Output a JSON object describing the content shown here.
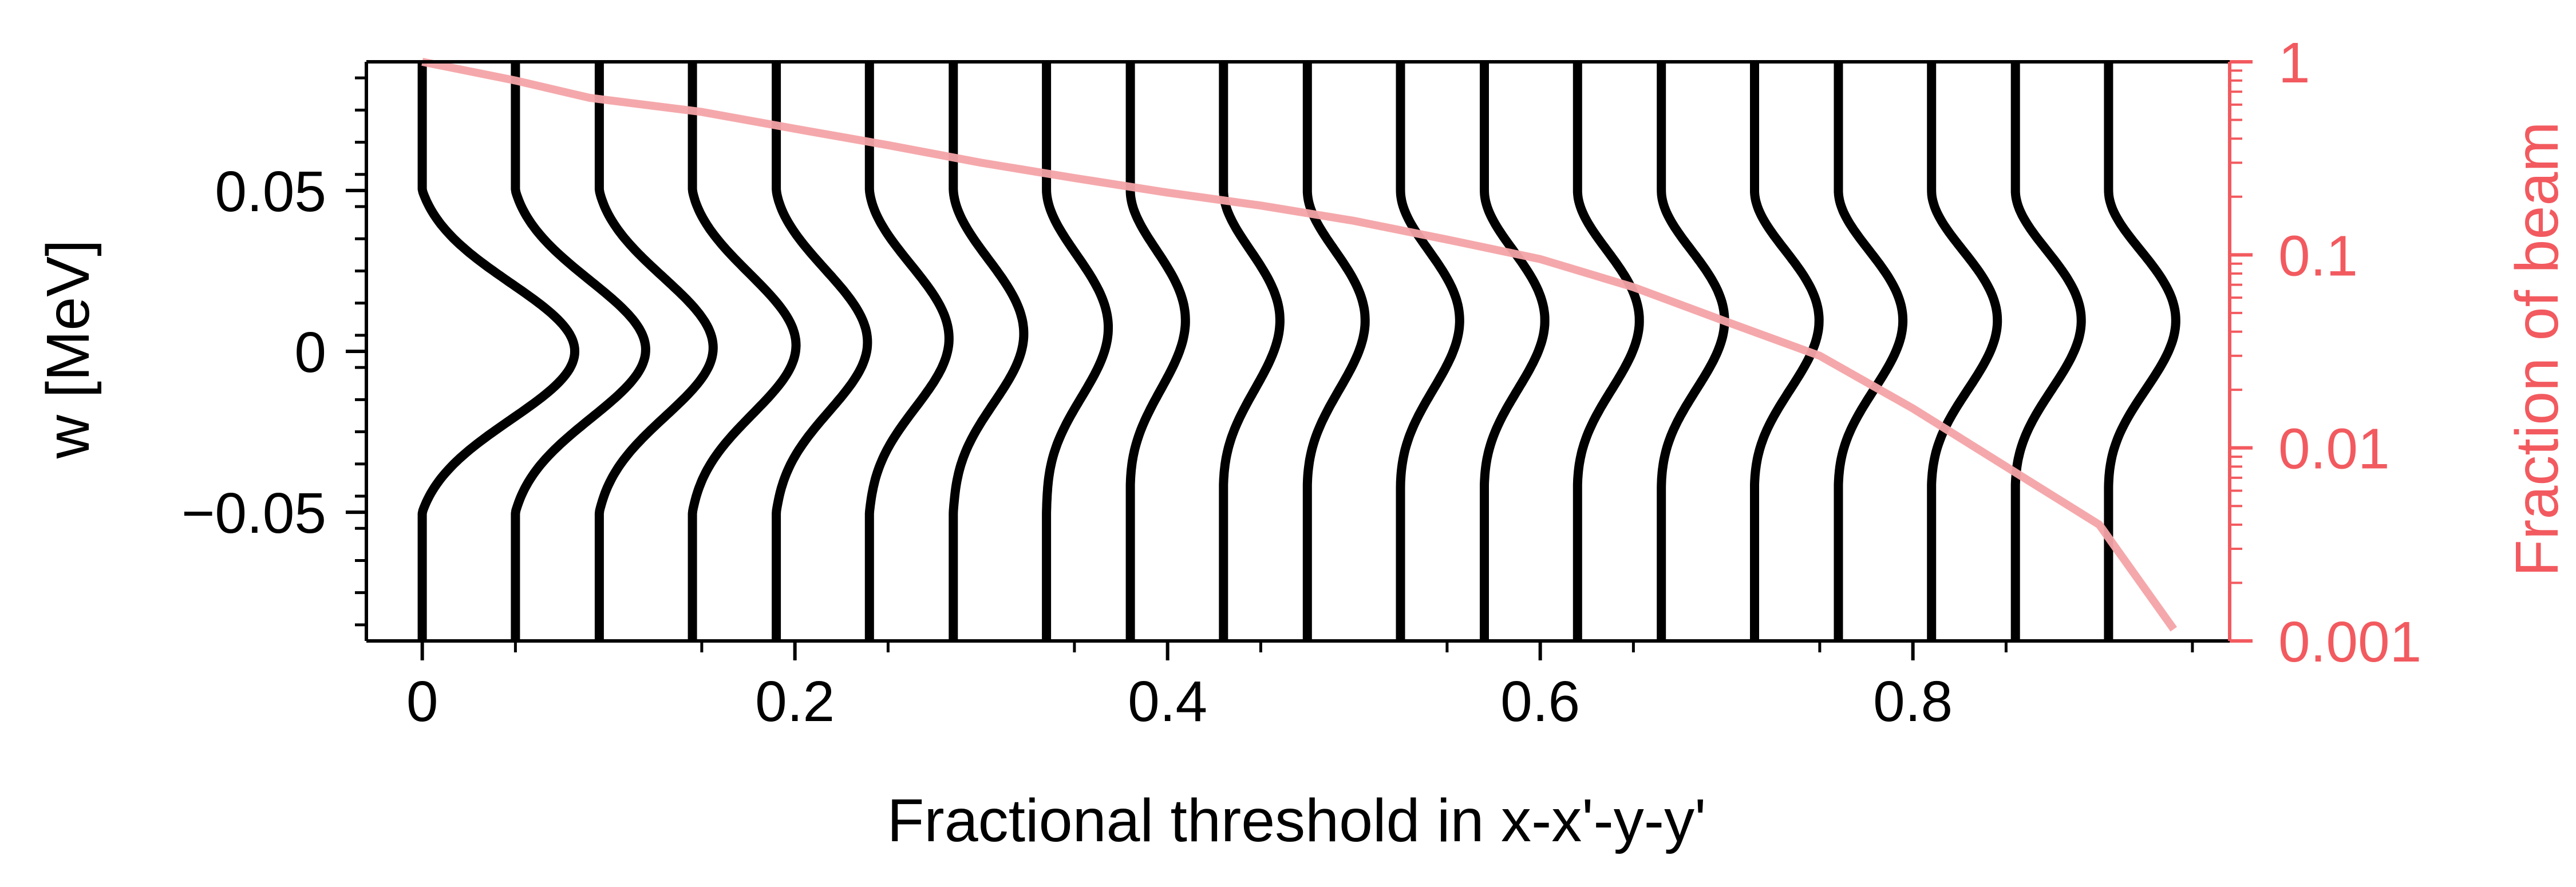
{
  "chart_data": {
    "type": "line",
    "xlabel": "Fractional threshold in x-x'-y-y'",
    "ylabel": "w [MeV]",
    "y2label": "Fraction of beam",
    "xlim": [
      -0.03,
      0.97
    ],
    "ylim": [
      -0.09,
      0.09
    ],
    "y2lim": [
      0.001,
      1
    ],
    "y2scale": "log",
    "xticks": [
      0,
      0.2,
      0.4,
      0.6,
      0.8
    ],
    "xtick_labels": [
      "0",
      "0.2",
      "0.4",
      "0.6",
      "0.8"
    ],
    "yticks": [
      0.05,
      0,
      -0.05
    ],
    "ytick_labels": [
      "0.05",
      "0",
      "−0.05"
    ],
    "y2ticks": [
      1,
      0.1,
      0.01,
      0.001
    ],
    "y2tick_labels": [
      "1",
      "0.1",
      "0.01",
      "0.001"
    ],
    "profiles": {
      "color": "#000000",
      "thresholds": [
        0,
        0.05,
        0.095,
        0.145,
        0.19,
        0.24,
        0.285,
        0.335,
        0.38,
        0.43,
        0.475,
        0.525,
        0.57,
        0.62,
        0.665,
        0.715,
        0.76,
        0.81,
        0.855,
        0.905
      ],
      "amplitudes": [
        0.0475,
        0.044,
        0.042,
        0.042,
        0.041,
        0.04,
        0.04,
        0.04,
        0.041,
        0.042,
        0.043,
        0.044,
        0.045,
        0.046,
        0.047,
        0.048,
        0.048,
        0.049,
        0.049,
        0.05
      ]
    },
    "series": [
      {
        "color": "#f4a3a6",
        "axis": "y2",
        "x": [
          0,
          0.05,
          0.09,
          0.15,
          0.2,
          0.25,
          0.3,
          0.35,
          0.4,
          0.45,
          0.5,
          0.55,
          0.6,
          0.65,
          0.7,
          0.75,
          0.8,
          0.85,
          0.9,
          0.94
        ],
        "values": [
          1,
          0.8,
          0.65,
          0.55,
          0.45,
          0.37,
          0.3,
          0.25,
          0.21,
          0.18,
          0.15,
          0.12,
          0.095,
          0.068,
          0.045,
          0.03,
          0.016,
          0.008,
          0.004,
          0.00115
        ]
      }
    ],
    "colors": {
      "axis": "#000000",
      "secondary_axis": "#f25a5f"
    }
  }
}
